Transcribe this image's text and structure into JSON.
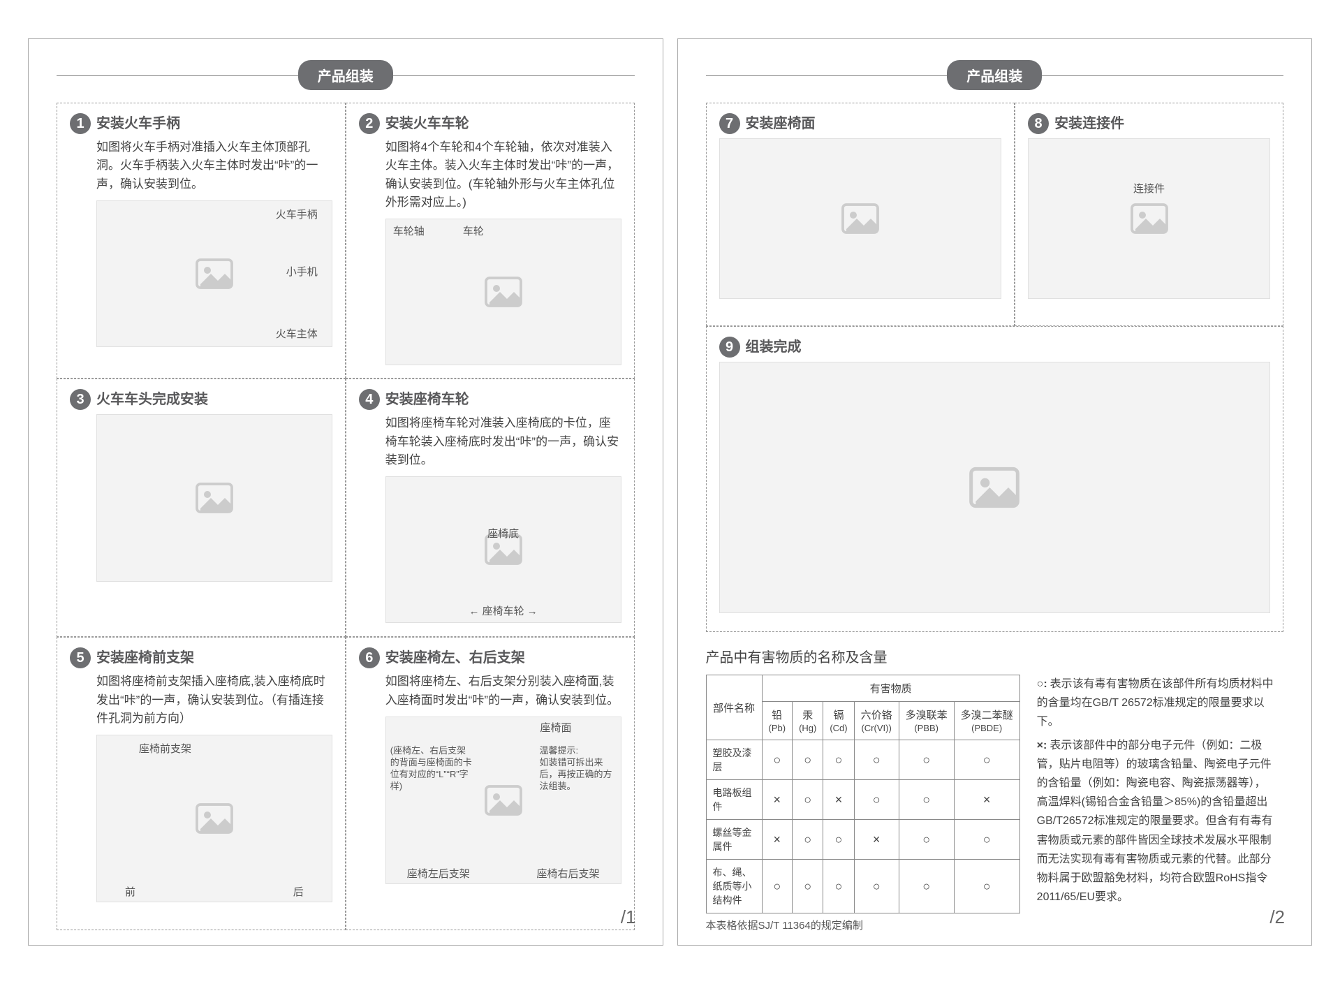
{
  "sectionTitle": "产品组装",
  "pageNumbers": {
    "p1": "/1",
    "p2": "/2"
  },
  "steps": {
    "s1": {
      "num": "1",
      "title": "安装火车手柄",
      "desc": "如图将火车手柄对准插入火车主体顶部孔洞。火车手柄装入火车主体时发出“咔”的一声，确认安装到位。",
      "labels": {
        "a": "火车手柄",
        "b": "小手机",
        "c": "火车主体"
      }
    },
    "s2": {
      "num": "2",
      "title": "安装火车车轮",
      "desc": "如图将4个车轮和4个车轮轴，依次对准装入火车主体。装入火车主体时发出“咔”的一声，确认安装到位。(车轮轴外形与火车主体孔位外形需对应上。)",
      "labels": {
        "a": "车轮轴",
        "b": "车轮"
      }
    },
    "s3": {
      "num": "3",
      "title": "火车车头完成安装",
      "desc": ""
    },
    "s4": {
      "num": "4",
      "title": "安装座椅车轮",
      "desc": "如图将座椅车轮对准装入座椅底的卡位，座椅车轮装入座椅底时发出“咔”的一声，确认安装到位。",
      "labels": {
        "a": "座椅底",
        "b": "← 座椅车轮 →"
      }
    },
    "s5": {
      "num": "5",
      "title": "安装座椅前支架",
      "desc": "如图将座椅前支架插入座椅底,装入座椅底时发出“咔”的一声，确认安装到位。（有插连接件孔洞为前方向）",
      "labels": {
        "a": "座椅前支架",
        "b": "前",
        "c": "后"
      }
    },
    "s6": {
      "num": "6",
      "title": "安装座椅左、右后支架",
      "desc": "如图将座椅左、右后支架分别装入座椅面,装入座椅面时发出“咔”的一声，确认安装到位。",
      "labels": {
        "a": "座椅面",
        "b": "(座椅左、右后支架的背面与座椅面的卡位有对应的“L”“R”字样)",
        "c": "温馨提示:\n如装错可拆出来后，再按正确的方法组装。",
        "d": "座椅左后支架",
        "e": "座椅右后支架"
      }
    },
    "s7": {
      "num": "7",
      "title": "安装座椅面",
      "desc": ""
    },
    "s8": {
      "num": "8",
      "title": "安装连接件",
      "desc": "",
      "labels": {
        "a": "连接件"
      }
    },
    "s9": {
      "num": "9",
      "title": "组装完成",
      "desc": ""
    }
  },
  "hazardous": {
    "title": "产品中有害物质的名称及含量",
    "colPart": "部件名称",
    "colGroup": "有害物质",
    "cols": [
      {
        "n": "铅",
        "s": "(Pb)"
      },
      {
        "n": "汞",
        "s": "(Hg)"
      },
      {
        "n": "镉",
        "s": "(Cd)"
      },
      {
        "n": "六价铬",
        "s": "(Cr(VI))"
      },
      {
        "n": "多溴联苯",
        "s": "(PBB)"
      },
      {
        "n": "多溴二苯醚",
        "s": "(PBDE)"
      }
    ],
    "rows": [
      {
        "name": "塑胶及漆层",
        "v": [
          "○",
          "○",
          "○",
          "○",
          "○",
          "○"
        ]
      },
      {
        "name": "电路板组件",
        "v": [
          "×",
          "○",
          "×",
          "○",
          "○",
          "×"
        ]
      },
      {
        "name": "螺丝等金属件",
        "v": [
          "×",
          "○",
          "○",
          "×",
          "○",
          "○"
        ]
      },
      {
        "name": "布、绳、纸质等小结构件",
        "v": [
          "○",
          "○",
          "○",
          "○",
          "○",
          "○"
        ]
      }
    ],
    "footnote": "本表格依据SJ/T 11364的规定编制",
    "legendO": "表示该有毒有害物质在该部件所有均质材料中的含量均在GB/T 26572标准规定的限量要求以下。",
    "legendX": "表示该部件中的部分电子元件（例如：二极管，贴片电阻等）的玻璃含铅量、陶瓷电子元件的含铅量（例如：陶瓷电容、陶瓷振荡器等），高温焊料(锡铅合金含铅量＞85%)的含铅量超出GB/T26572标准规定的限量要求。但含有有毒有害物质或元素的部件皆因全球技术发展水平限制而无法实现有毒有害物质或元素的代替。此部分物料属于欧盟豁免材料，均符合欧盟RoHS指令2011/65/EU要求。"
  },
  "colors": {
    "badge": "#6d6e71",
    "text": "#444444",
    "border": "#888888",
    "dash": "#999999"
  }
}
